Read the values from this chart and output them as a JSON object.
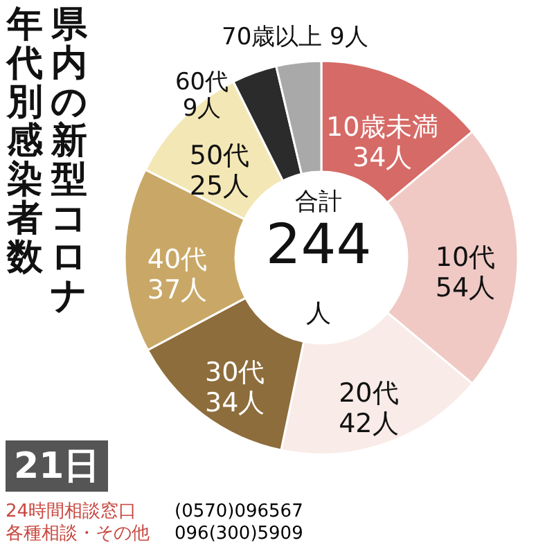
{
  "chart_data": {
    "type": "donut",
    "title": "県内の新型コロナ年代別感染者数",
    "categories": [
      "10歳未満",
      "10代",
      "20代",
      "30代",
      "40代",
      "50代",
      "60代",
      "70歳以上"
    ],
    "values": [
      34,
      54,
      42,
      34,
      37,
      25,
      9,
      9
    ],
    "colors": [
      "#d66a66",
      "#f0c9c4",
      "#f9ebe7",
      "#8e6d3c",
      "#c9a867",
      "#f3e7b5",
      "#2b2b2b",
      "#a9a9a9"
    ],
    "value_labels": [
      "34人",
      "54人",
      "42人",
      "34人",
      "37人",
      "25人",
      "9人",
      "9人"
    ],
    "annotations": [
      "合計",
      "244人",
      "21日",
      "24時間相談窓口",
      "(0570)096567",
      "各種相談・その他",
      "096(300)5909"
    ]
  }
}
